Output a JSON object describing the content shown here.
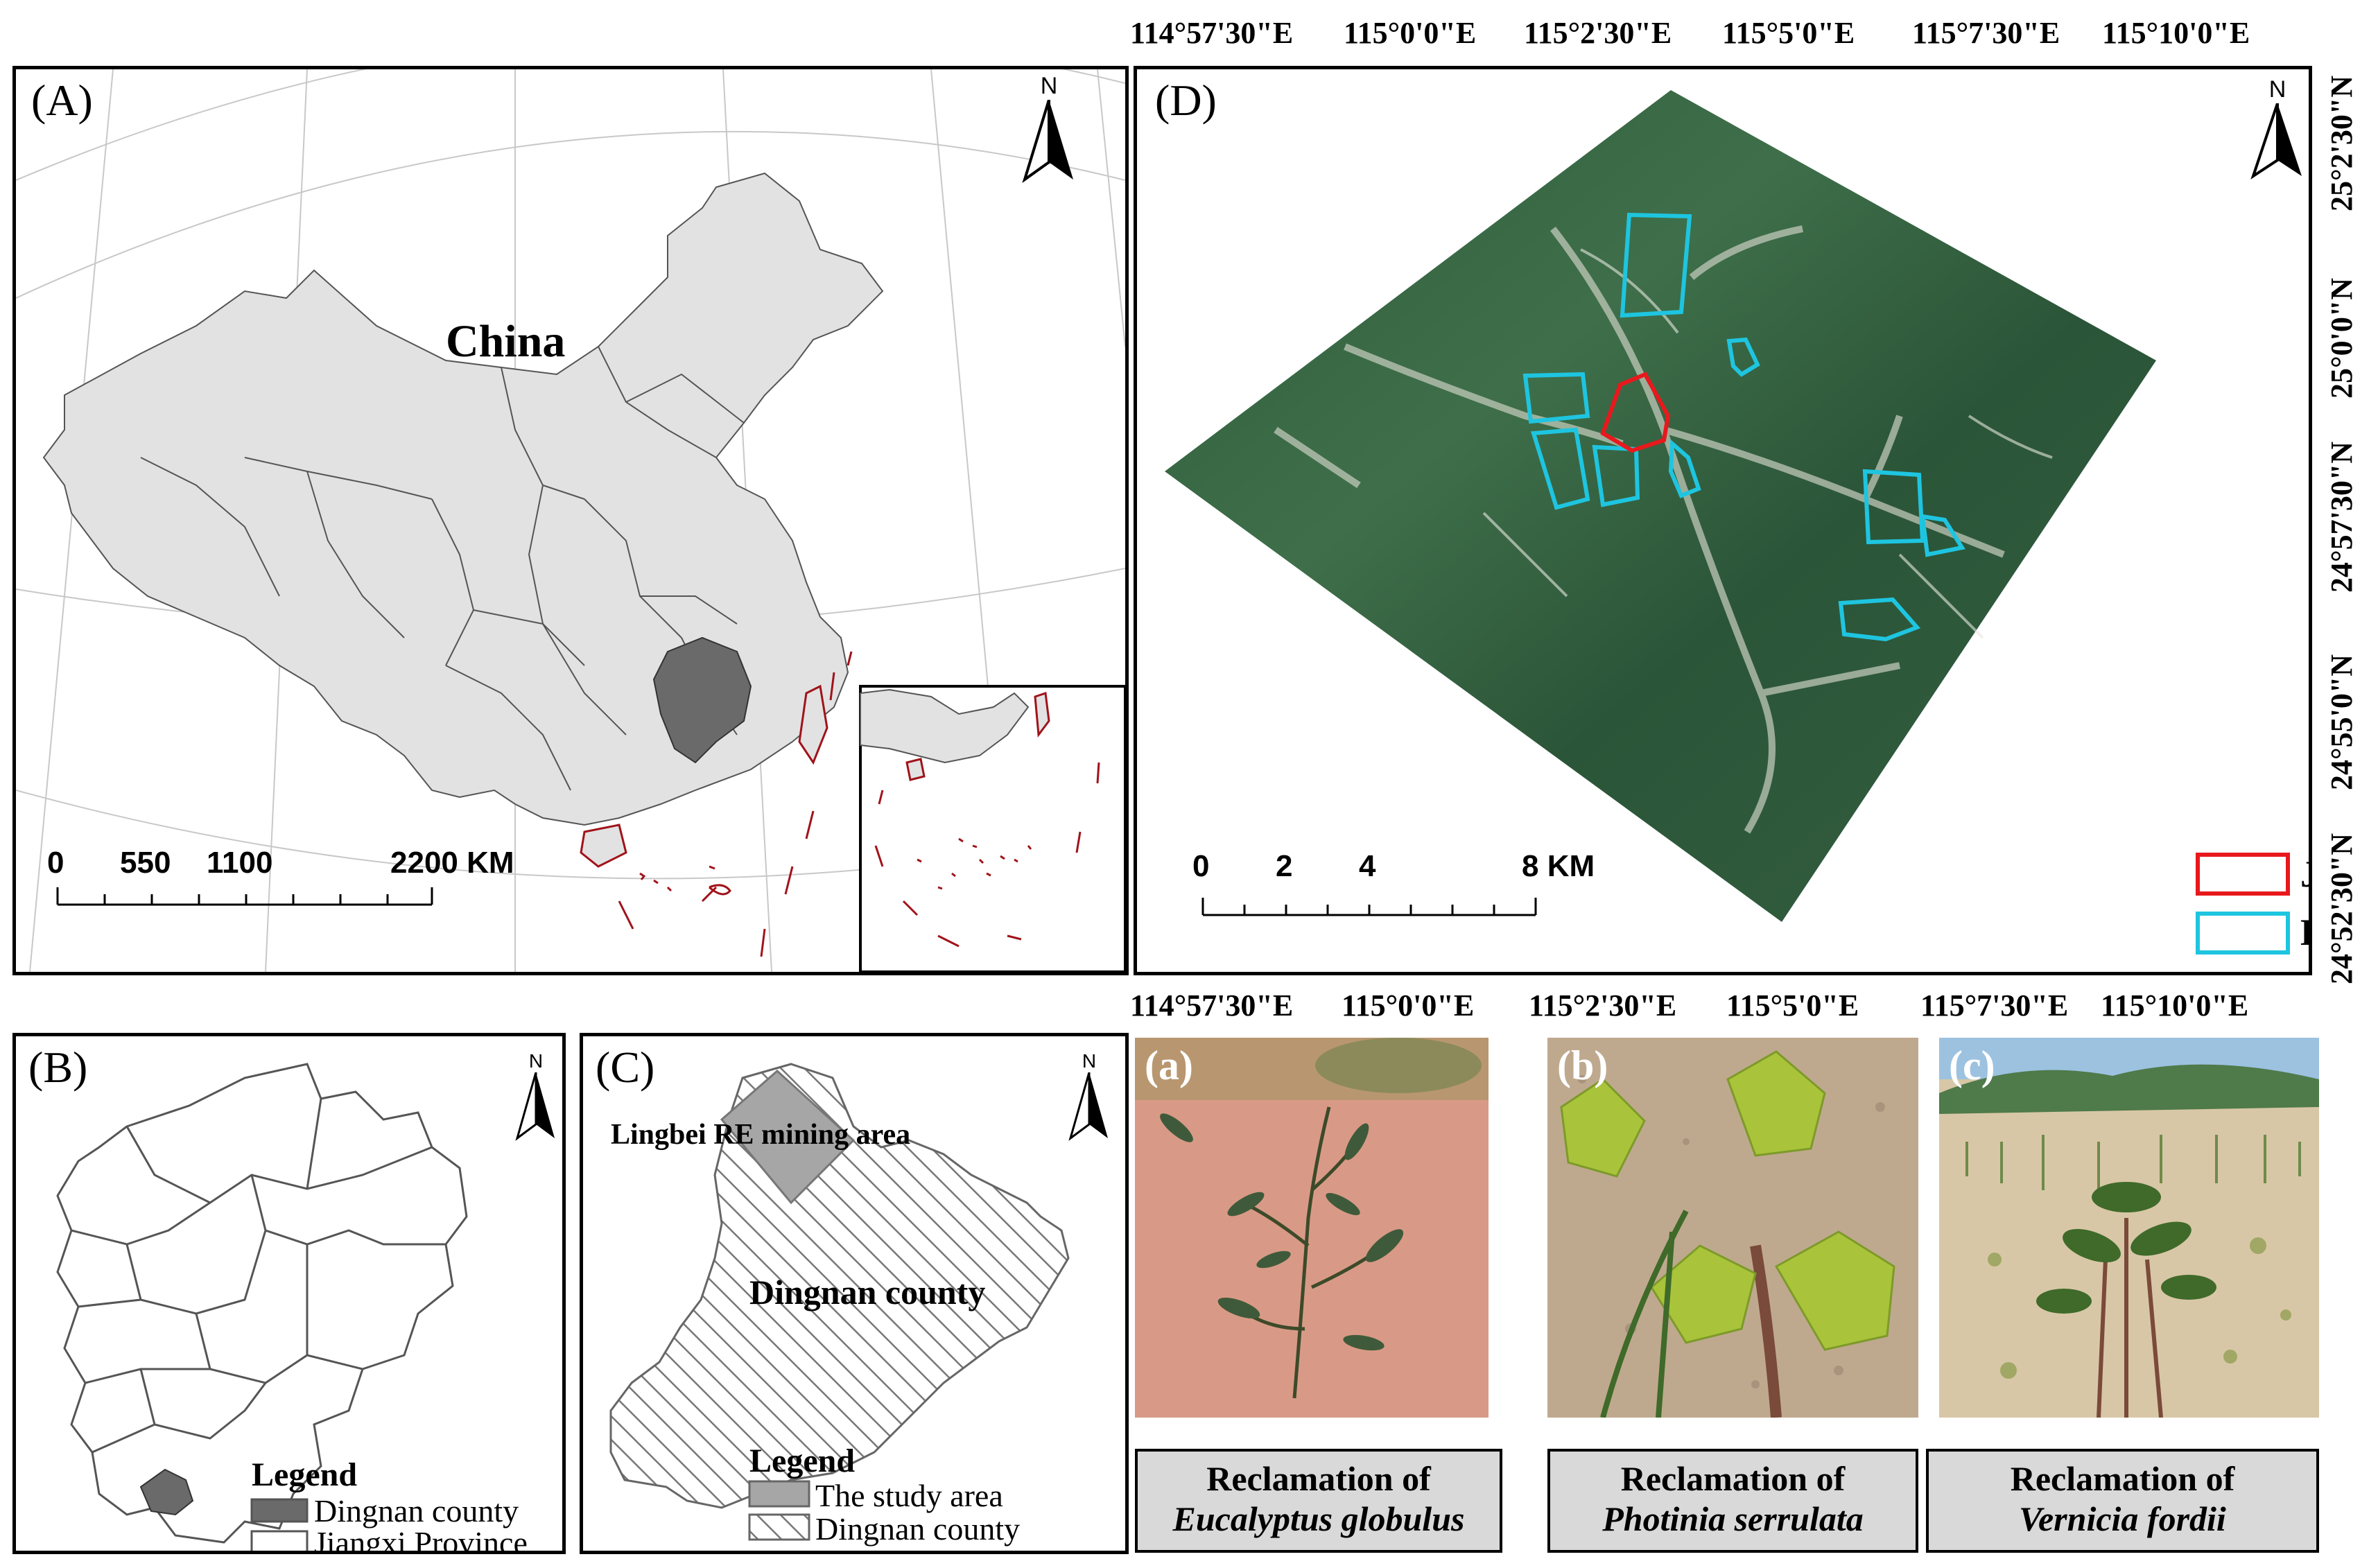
{
  "panelA": {
    "label": "(A)",
    "country_label": "China",
    "north": "N",
    "scale": {
      "ticks": [
        "0",
        "550",
        "1100",
        "2200 KM"
      ]
    }
  },
  "panelB": {
    "label": "(B)",
    "north": "N",
    "legend": {
      "title": "Legend",
      "items": [
        "Dingnan county",
        "Jiangxi Province"
      ]
    }
  },
  "panelC": {
    "label": "(C)",
    "north": "N",
    "area_label": "Lingbei RE mining area",
    "county_label": "Dingnan county",
    "legend": {
      "title": "Legend",
      "items": [
        "The study area",
        "Dingnan county"
      ]
    }
  },
  "panelD": {
    "label": "(D)",
    "north": "N",
    "top_coords": [
      "114°57'30\"E",
      "115°0'0\"E",
      "115°2'30\"E",
      "115°5'0\"E",
      "115°7'30\"E",
      "115°10'0\"E"
    ],
    "bottom_coords": [
      "114°57'30\"E",
      "115°0'0\"E",
      "115°2'30\"E",
      "115°5'0\"E",
      "115°7'30\"E",
      "115°10'0\"E"
    ],
    "right_coords": [
      "25°2'30\"N",
      "25°0'0\"N",
      "24°57'30\"N",
      "24°55'0\"N",
      "24°52'30\"N"
    ],
    "scale": {
      "ticks": [
        "0",
        "2",
        "4",
        "8 KM"
      ]
    },
    "legend": {
      "items": [
        "Jiazibei mine site",
        "Linbei RE mining area"
      ]
    },
    "colors": {
      "mine_site": "#e8191d",
      "mining_area": "#1ec5e0"
    }
  },
  "photos": [
    {
      "label": "(a)",
      "caption_prefix": "Reclamation of",
      "species": "Eucalyptus globulus"
    },
    {
      "label": "(b)",
      "caption_prefix": "Reclamation of",
      "species": "Photinia serrulata"
    },
    {
      "label": "(c)",
      "caption_prefix": "Reclamation of",
      "species": "Vernicia fordii"
    }
  ]
}
